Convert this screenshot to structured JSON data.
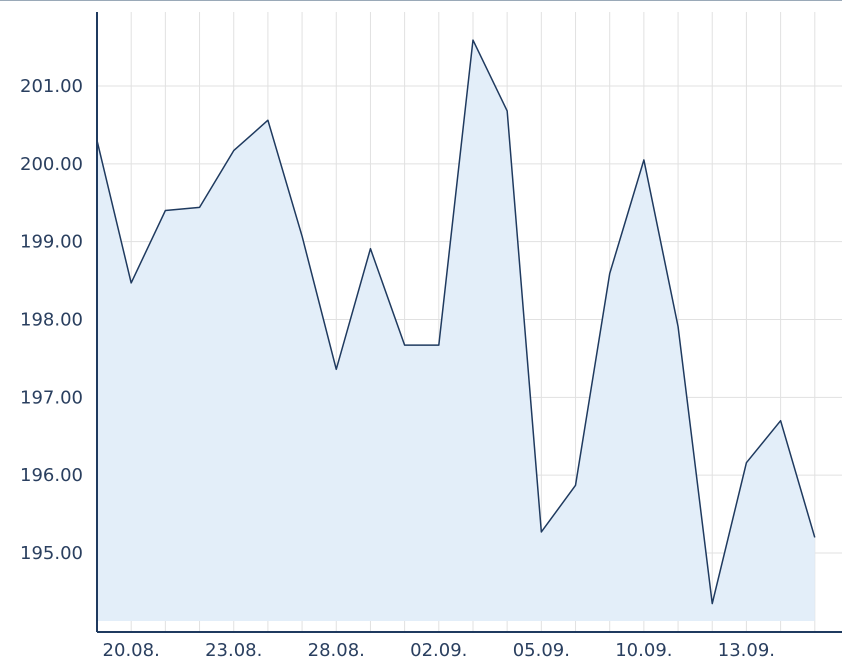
{
  "chart_data": {
    "type": "area",
    "title": "",
    "xlabel": "",
    "ylabel": "",
    "ylim": [
      194.1,
      202.0
    ],
    "yticks": [
      195,
      196,
      197,
      198,
      199,
      200,
      201
    ],
    "ytick_labels": [
      "195.00",
      "196.00",
      "197.00",
      "198.00",
      "199.00",
      "200.00",
      "201.00"
    ],
    "xtick_labels": [
      "20.08.",
      "23.08.",
      "28.08.",
      "02.09.",
      "05.09.",
      "10.09.",
      "13.09."
    ],
    "grid": true,
    "legend": "none",
    "colors": {
      "line": "#1f3a5f",
      "fill": "#e3eef9",
      "grid": "#e1e1e1",
      "axis": "#1f3a5f",
      "text": "#2a3f5f"
    },
    "x": [
      "19.08.",
      "20.08.",
      "21.08.",
      "22.08.",
      "23.08.",
      "26.08.",
      "27.08.",
      "28.08.",
      "29.08.",
      "30.08.",
      "02.09.",
      "03.09.",
      "04.09.",
      "05.09.",
      "06.09.",
      "09.09.",
      "10.09.",
      "11.09.",
      "12.09.",
      "13.09.",
      "16.09.",
      "17.09."
    ],
    "series": [
      {
        "values": [
          200.3,
          198.47,
          199.4,
          199.44,
          200.17,
          200.56,
          199.07,
          197.36,
          198.91,
          197.67,
          197.67,
          201.59,
          200.68,
          195.27,
          195.87,
          198.59,
          200.05,
          197.91,
          194.35,
          196.16,
          196.7,
          195.2
        ]
      }
    ]
  }
}
